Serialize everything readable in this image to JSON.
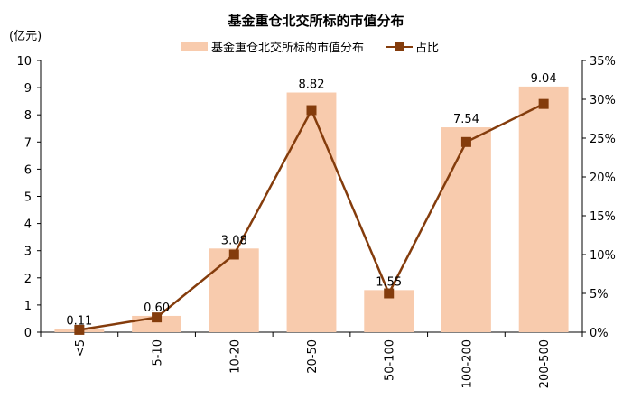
{
  "chart_data": {
    "type": "bar+line",
    "title": "基金重仓北交所标的市值分布",
    "ylabel_left": "(亿元)",
    "categories": [
      "<5",
      "5-10",
      "10-20",
      "20-50",
      "50-100",
      "100-200",
      "200-500"
    ],
    "series": [
      {
        "name": "基金重仓北交所标的市值分布",
        "kind": "bar",
        "axis": "left",
        "color": "#F8CBAD",
        "values": [
          0.11,
          0.6,
          3.08,
          8.82,
          1.55,
          7.54,
          9.04
        ],
        "labels": [
          "0.11",
          "0.60",
          "3.08",
          "8.82",
          "1.55",
          "7.54",
          "9.04"
        ]
      },
      {
        "name": "占比",
        "kind": "line",
        "axis": "right",
        "color": "#843C0C",
        "values": [
          0.3,
          1.9,
          10.0,
          28.6,
          5.0,
          24.5,
          29.4
        ]
      }
    ],
    "ylim_left": [
      0,
      10
    ],
    "yticks_left": [
      "0",
      "1",
      "2",
      "3",
      "4",
      "5",
      "6",
      "7",
      "8",
      "9",
      "10"
    ],
    "ylim_right": [
      0,
      35
    ],
    "yticks_right": [
      "0%",
      "5%",
      "10%",
      "15%",
      "20%",
      "25%",
      "30%",
      "35%"
    ],
    "legend_position": "top-center"
  }
}
